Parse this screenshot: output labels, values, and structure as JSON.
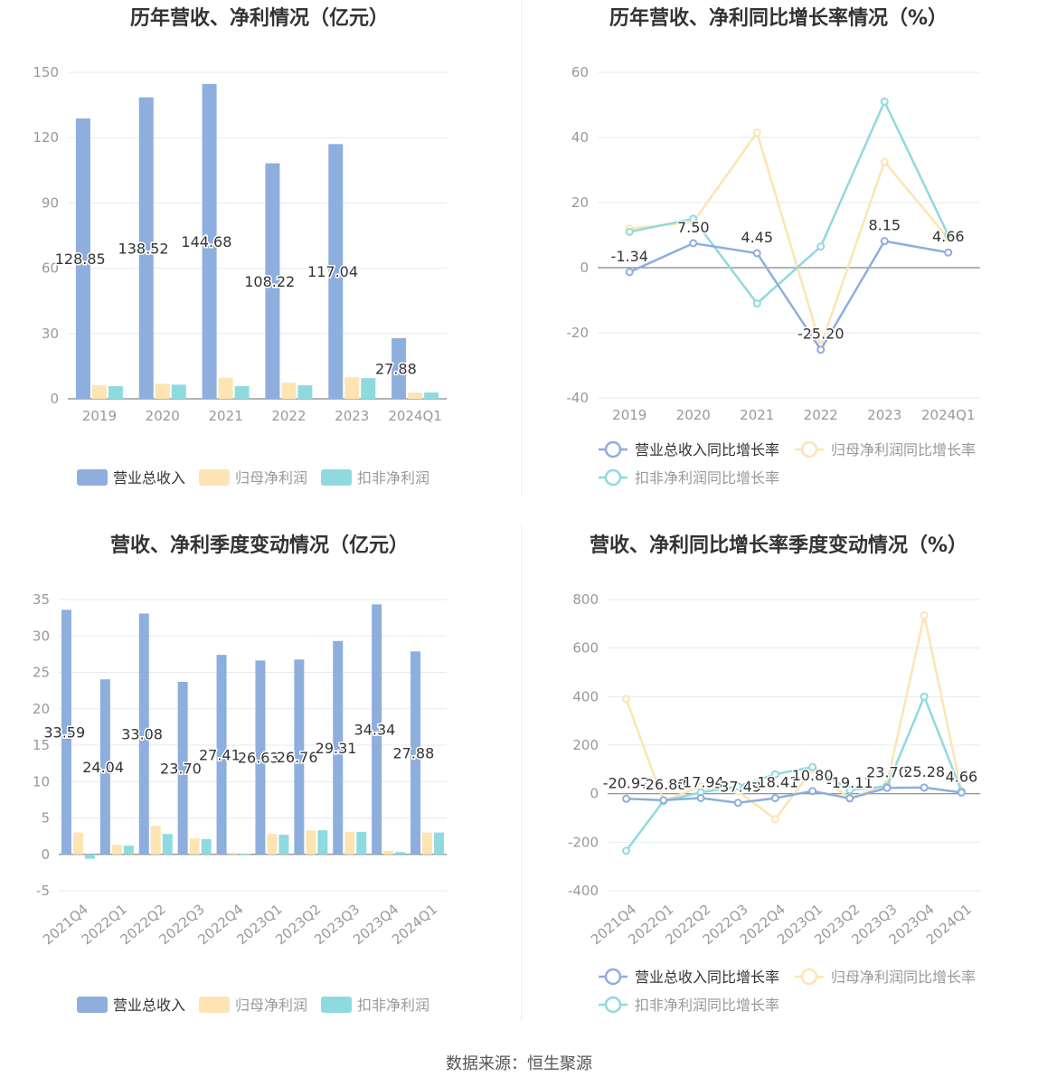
{
  "source": "数据来源：恒生聚源",
  "colors": {
    "revenue": "#8eaedd",
    "net_profit": "#fde4b2",
    "deducted_profit": "#8fdade",
    "axis": "#999999",
    "grid": "#e6e9f2",
    "label": "#333333"
  },
  "chart_data": [
    {
      "type": "bar",
      "title": "历年营收、净利情况（亿元）",
      "categories": [
        "2019",
        "2020",
        "2021",
        "2022",
        "2023",
        "2024Q1"
      ],
      "yticks": [
        "0",
        "30",
        "60",
        "90",
        "120",
        "150"
      ],
      "ylim": [
        0,
        150
      ],
      "series": [
        {
          "name": "营业总收入",
          "values": [
            128.85,
            138.52,
            144.68,
            108.22,
            117.04,
            27.88
          ],
          "labels": [
            "128.85",
            "138.52",
            "144.68",
            "108.22",
            "117.04",
            "27.88"
          ]
        },
        {
          "name": "归母净利润",
          "values": [
            6.2,
            6.9,
            9.7,
            7.4,
            9.9,
            2.8
          ]
        },
        {
          "name": "扣非净利润",
          "values": [
            5.8,
            6.5,
            5.8,
            6.2,
            9.5,
            2.9
          ]
        }
      ],
      "legend": "bottom"
    },
    {
      "type": "line",
      "title": "历年营收、净利同比增长率情况（%）",
      "categories": [
        "2019",
        "2020",
        "2021",
        "2022",
        "2023",
        "2024Q1"
      ],
      "yticks": [
        "-40",
        "-20",
        "0",
        "20",
        "40",
        "60"
      ],
      "ylim": [
        -40,
        60
      ],
      "series": [
        {
          "name": "营业总收入同比增长率",
          "values": [
            -1.34,
            7.5,
            4.45,
            -25.2,
            8.15,
            4.66
          ],
          "labels": [
            "-1.34",
            "7.50",
            "4.45",
            "-25.20",
            "8.15",
            "4.66"
          ]
        },
        {
          "name": "归母净利润同比增长率",
          "values": [
            12.0,
            14.0,
            41.5,
            -24.0,
            32.5,
            9.0
          ]
        },
        {
          "name": "扣非净利润同比增长率",
          "values": [
            11.0,
            15.0,
            -11.0,
            6.5,
            51.0,
            10.0
          ]
        }
      ],
      "legend": "bottom"
    },
    {
      "type": "bar",
      "title": "营收、净利季度变动情况（亿元）",
      "categories": [
        "2021Q4",
        "2022Q1",
        "2022Q2",
        "2022Q3",
        "2022Q4",
        "2023Q1",
        "2023Q2",
        "2023Q3",
        "2023Q4",
        "2024Q1"
      ],
      "yticks": [
        "-5",
        "0",
        "5",
        "10",
        "15",
        "20",
        "25",
        "30",
        "35"
      ],
      "ylim": [
        -5,
        35
      ],
      "series": [
        {
          "name": "营业总收入",
          "values": [
            33.59,
            24.04,
            33.08,
            23.7,
            27.41,
            26.63,
            26.76,
            29.31,
            34.34,
            27.88
          ],
          "labels": [
            "33.59",
            "24.04",
            "33.08",
            "23.70",
            "27.41",
            "26.63",
            "26.76",
            "29.31",
            "34.34",
            "27.88"
          ]
        },
        {
          "name": "归母净利润",
          "values": [
            3.0,
            1.3,
            3.9,
            2.2,
            0.2,
            2.8,
            3.3,
            3.1,
            0.5,
            3.0
          ]
        },
        {
          "name": "扣非净利润",
          "values": [
            -0.6,
            1.2,
            2.8,
            2.1,
            0.1,
            2.7,
            3.3,
            3.1,
            0.3,
            3.0
          ]
        }
      ],
      "legend": "bottom"
    },
    {
      "type": "line",
      "title": "营收、净利同比增长率季度变动情况（%）",
      "categories": [
        "2021Q4",
        "2022Q1",
        "2022Q2",
        "2022Q3",
        "2022Q4",
        "2023Q1",
        "2023Q2",
        "2023Q3",
        "2023Q4",
        "2024Q1"
      ],
      "yticks": [
        "-400",
        "-200",
        "0",
        "200",
        "400",
        "600",
        "800"
      ],
      "ylim": [
        -400,
        800
      ],
      "series": [
        {
          "name": "营业总收入同比增长率",
          "values": [
            -20.97,
            -26.88,
            -17.94,
            -37.49,
            -18.41,
            10.8,
            -19.11,
            23.7,
            25.28,
            4.66
          ],
          "labels": [
            "-20.97",
            "-26.88",
            "-17.94",
            "-37.49",
            "-18.41",
            "10.80",
            "-19.11",
            "23.70",
            "25.28",
            "4.66"
          ]
        },
        {
          "name": "归母净利润同比增长率",
          "values": [
            390,
            -30,
            30,
            10,
            -105,
            100,
            -20,
            40,
            735,
            10
          ]
        },
        {
          "name": "扣非净利润同比增长率",
          "values": [
            -235,
            -30,
            5,
            30,
            80,
            110,
            15,
            30,
            400,
            10
          ]
        }
      ],
      "legend": "bottom"
    }
  ]
}
